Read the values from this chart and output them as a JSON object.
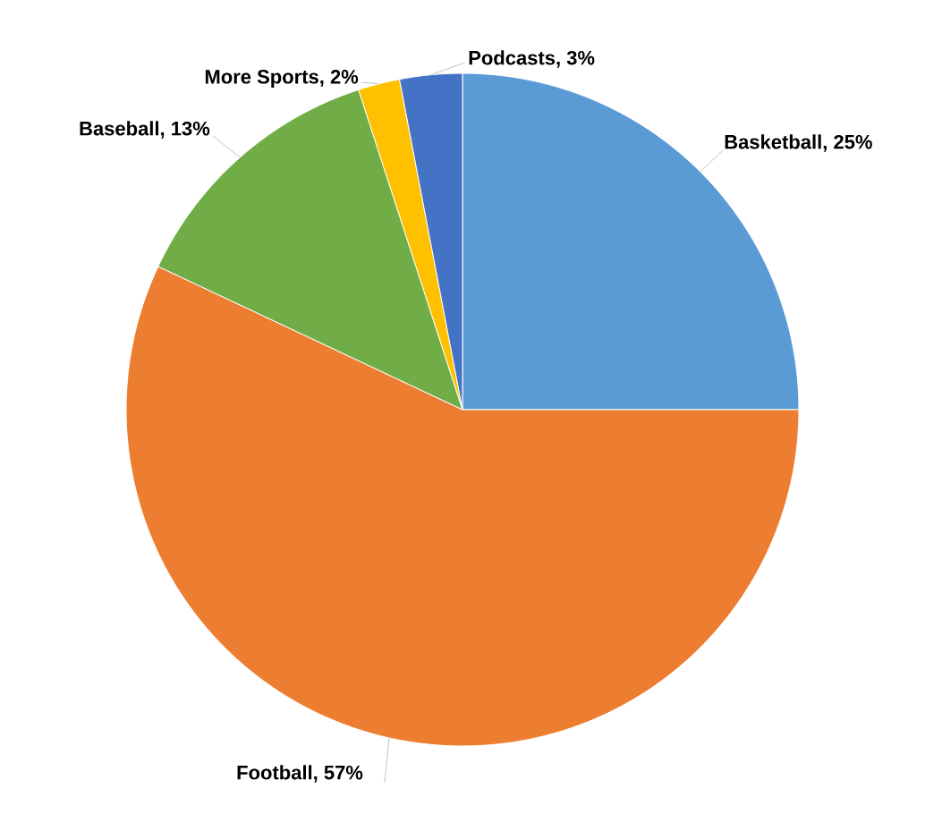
{
  "chart_data": {
    "type": "pie",
    "categories": [
      "Basketball",
      "Football",
      "Baseball",
      "More Sports",
      "Podcasts"
    ],
    "values": [
      25,
      57,
      13,
      2,
      3
    ],
    "value_labels": [
      ", 25%",
      ", 57%",
      ", 13%",
      ", 2%",
      ", 3%"
    ],
    "colors": [
      "#5b9bd5",
      "#ed7d31",
      "#70ad47",
      "#ffc000",
      "#4472c4"
    ]
  }
}
